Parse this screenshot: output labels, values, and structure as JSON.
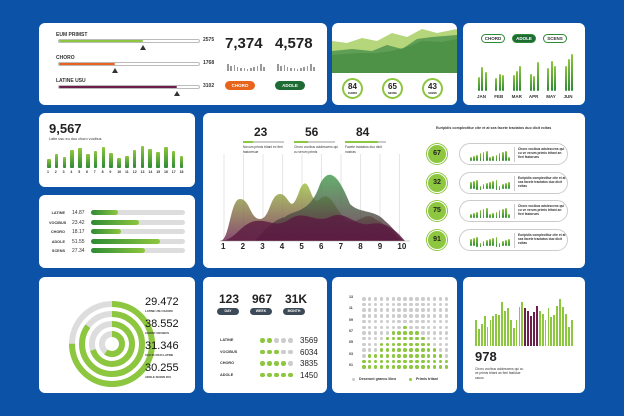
{
  "colors": {
    "background": "#0c52a7",
    "green": "#8dc63f",
    "dark_green": "#2d8a34",
    "orange": "#e8641d",
    "purple": "#6b1f4d"
  },
  "progress_panel": {
    "items": [
      {
        "label": "EUM PRIMST",
        "value": "2575",
        "fill": 0.6,
        "marker": 0.6,
        "color": "#8dc63f"
      },
      {
        "label": "CHORO",
        "value": "1768",
        "fill": 0.4,
        "marker": 0.4,
        "color": "#e8641d"
      },
      {
        "label": "LATINE USU",
        "value": "3102",
        "fill": 0.84,
        "marker": 0.84,
        "color": "#6b1f4d"
      }
    ],
    "stats": [
      {
        "value": "7,374",
        "button": "CHORO"
      },
      {
        "value": "4,578",
        "button": "ADOLE"
      }
    ]
  },
  "area_panel": {
    "circles": [
      {
        "value": "84",
        "label": "CHORO"
      },
      {
        "value": "65",
        "label": "NEOSE"
      },
      {
        "value": "43",
        "label": "SCENS"
      }
    ]
  },
  "monthly_bars": {
    "legend": [
      "CHORD",
      "ADOLE",
      "SCENS"
    ],
    "months": [
      "JAN",
      "FEB",
      "MAR",
      "APR",
      "MAY",
      "JUN"
    ],
    "values": [
      [
        40,
        68,
        55
      ],
      [
        38,
        50,
        47
      ],
      [
        45,
        57,
        72
      ],
      [
        50,
        44,
        83
      ],
      [
        67,
        85,
        72
      ],
      [
        72,
        92,
        106
      ]
    ]
  },
  "count_panel": {
    "value": "9,567",
    "caption": "Latin usu eu duo choro vocibus",
    "labels": [
      "1",
      "2",
      "3",
      "4",
      "5",
      "6",
      "7",
      "8",
      "9",
      "10",
      "11",
      "12",
      "13",
      "14",
      "15",
      "16",
      "17",
      "18"
    ],
    "values": [
      45,
      70,
      55,
      90,
      100,
      72,
      85,
      105,
      75,
      50,
      60,
      90,
      110,
      95,
      78,
      105,
      85,
      58
    ]
  },
  "hbar_panel": {
    "items": [
      {
        "label": "LATINE",
        "value": "14.87",
        "fill": 0.29
      },
      {
        "label": "VOCIBUS",
        "value": "23.42",
        "fill": 0.51
      },
      {
        "label": "CHORO",
        "value": "18.17",
        "fill": 0.32
      },
      {
        "label": "ADOLE",
        "value": "51.55",
        "fill": 0.73
      },
      {
        "label": "SCENS",
        "value": "27.34",
        "fill": 0.57
      }
    ]
  },
  "center_panel": {
    "stats": [
      {
        "value": "23",
        "fill": 0.25,
        "text": "Novum primis tritani ex fieri fastoresue"
      },
      {
        "value": "56",
        "fill": 0.35,
        "text": "Choro vocibus adolescens qui cu verum primis"
      },
      {
        "value": "84",
        "fill": 0.8,
        "text": "Facete tractatos duo dicit nostras"
      }
    ],
    "x_labels": [
      "1",
      "2",
      "3",
      "4",
      "5",
      "6",
      "7",
      "8",
      "9",
      "10"
    ],
    "right_title": "Euripidis complectitur cite et at sea facete tractatos duo dicit ecitas",
    "rows": [
      {
        "value": "67",
        "text": "Choro vocibus adolescens qui cu ve verum primis tritani an fieri fastorues"
      },
      {
        "value": "32",
        "text": "Euripidis complectitur cite et at sea facete tractatos duo dicit ecitas"
      },
      {
        "value": "75",
        "text": "Choro vocibus adolescens qui cu ve verum primis tritani an fieri fastorues"
      },
      {
        "value": "91",
        "text": "Euripidis complectitur cite et at sea facete tractatos duo dicit ecitas"
      }
    ]
  },
  "rings_panel": {
    "items": [
      {
        "value": "29.472",
        "label": "LATINE USU CHORO",
        "fill": 0.75
      },
      {
        "value": "38.552",
        "label": "CHORO VOCIBUS",
        "fill": 0.85
      },
      {
        "value": "31.346",
        "label": "USU EU DUO LATINE",
        "fill": 0.7
      },
      {
        "value": "30.255",
        "label": "ADOLE SCENS DUI",
        "fill": 0.6
      }
    ]
  },
  "period_panel": {
    "stats": [
      {
        "value": "123",
        "label": "DAY"
      },
      {
        "value": "967",
        "label": "WEEK"
      },
      {
        "value": "31K",
        "label": "MONTH"
      }
    ],
    "rows": [
      {
        "label": "LATINE",
        "value": "3569",
        "rating": 2
      },
      {
        "label": "VOCIBUS",
        "value": "6034",
        "rating": 3
      },
      {
        "label": "CHORO",
        "value": "3835",
        "rating": 4
      },
      {
        "label": "ADOLE",
        "value": "1450",
        "rating": 5
      }
    ]
  },
  "dot_panel": {
    "y_labels": [
      "13",
      "11",
      "09",
      "07",
      "05",
      "03",
      "01"
    ],
    "column_heights": [
      2,
      3,
      3,
      5,
      6,
      7,
      7,
      8,
      7,
      7,
      6,
      5,
      4,
      3,
      2
    ],
    "legend": [
      "Deserunt graeco libro",
      "Primis tritani"
    ]
  },
  "bars_panel": {
    "value": "978",
    "caption": "Choro vocibus adolescens qui cu ve primis tritani an fieri fastidue cacus"
  }
}
